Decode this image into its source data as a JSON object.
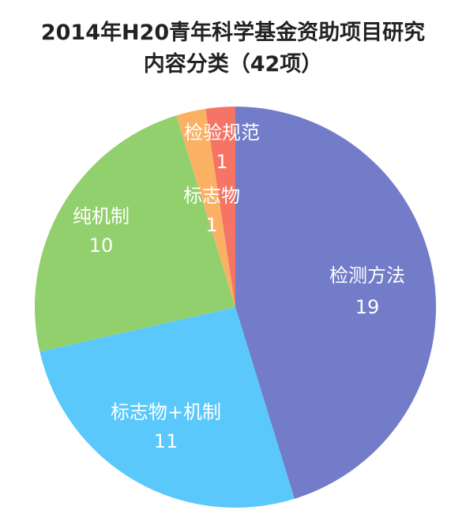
{
  "chart_data": {
    "type": "pie",
    "title": "2014年H20青年科学基金资助项目研究",
    "subtitle": "内容分类（42项）",
    "slices": [
      {
        "label": "检测方法",
        "value": 19,
        "color": "#727cc8"
      },
      {
        "label": "标志物+机制",
        "value": 11,
        "color": "#5ac8fa"
      },
      {
        "label": "纯机制",
        "value": 10,
        "color": "#92d06e"
      },
      {
        "label": "标志物",
        "value": 1,
        "color": "#fbb163"
      },
      {
        "label": "检验规范",
        "value": 1,
        "color": "#f57466"
      }
    ]
  }
}
